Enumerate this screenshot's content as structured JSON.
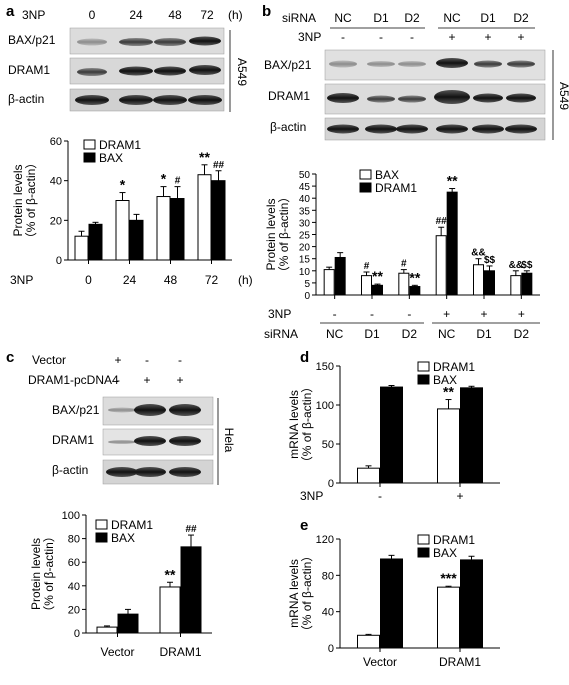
{
  "panels": {
    "a": {
      "letter": "a",
      "treatment_label": "3NP",
      "times": [
        "0",
        "24",
        "48",
        "72"
      ],
      "time_unit": "(h)",
      "blot_labels": [
        "BAX/p21",
        "DRAM1",
        "β-actin"
      ],
      "cell_line": "A549"
    },
    "b": {
      "letter": "b",
      "sirna_label": "siRNA",
      "sirna": [
        "NC",
        "D1",
        "D2",
        "NC",
        "D1",
        "D2"
      ],
      "np_label": "3NP",
      "np": [
        "-",
        "-",
        "-",
        "+",
        "+",
        "+"
      ],
      "blot_labels": [
        "BAX/p21",
        "DRAM1",
        "β-actin"
      ],
      "cell_line": "A549"
    },
    "c": {
      "letter": "c",
      "row_labels": [
        "Vector",
        "DRAM1-pcDNA4"
      ],
      "vector_marks": [
        "+",
        "-",
        "-"
      ],
      "dram_marks": [
        "-",
        "+",
        "+"
      ],
      "blot_labels": [
        "BAX/p21",
        "DRAM1",
        "β-actin"
      ],
      "cell_line": "Hela"
    },
    "d": {
      "letter": "d"
    },
    "e": {
      "letter": "e"
    }
  },
  "chart_data": [
    {
      "panel": "a",
      "type": "bar",
      "ylabel": "Protein levels\n（% of β-actin）",
      "ylim": [
        0,
        60
      ],
      "yticks": [
        0,
        20,
        40,
        60
      ],
      "xlabel_prefix": "3NP",
      "x_unit": "(h)",
      "categories": [
        "0",
        "24",
        "48",
        "72"
      ],
      "series": [
        {
          "name": "DRAM1",
          "fill": "white",
          "values": [
            12,
            30,
            32,
            43
          ],
          "errors": [
            2.5,
            4,
            5,
            5
          ]
        },
        {
          "name": "BAX",
          "fill": "black",
          "values": [
            18,
            20,
            31,
            40
          ],
          "errors": [
            1,
            3,
            6,
            5
          ]
        }
      ],
      "annotations": [
        {
          "category": 1,
          "series": 0,
          "text": "*"
        },
        {
          "category": 2,
          "series": 0,
          "text": "*"
        },
        {
          "category": 2,
          "series": 1,
          "text": "#"
        },
        {
          "category": 3,
          "series": 0,
          "text": "**"
        },
        {
          "category": 3,
          "series": 1,
          "text": "##"
        }
      ]
    },
    {
      "panel": "b",
      "type": "bar",
      "ylabel": "Protein levels\n（% of β-actin）",
      "ylim": [
        0,
        50
      ],
      "yticks": [
        0,
        5,
        10,
        15,
        20,
        25,
        30,
        35,
        40,
        45,
        50
      ],
      "row1_label": "3NP",
      "row1": [
        "-",
        "-",
        "-",
        "+",
        "+",
        "+"
      ],
      "row2_label": "siRNA",
      "categories": [
        "NC",
        "D1",
        "D2",
        "NC",
        "D1",
        "D2"
      ],
      "series": [
        {
          "name": "BAX",
          "fill": "white",
          "values": [
            10.5,
            8,
            9,
            24.5,
            12.5,
            8
          ],
          "errors": [
            1,
            1.5,
            1.5,
            3.5,
            2.5,
            2
          ]
        },
        {
          "name": "DRAM1",
          "fill": "black",
          "values": [
            15.5,
            4,
            3.5,
            42.5,
            10,
            9
          ],
          "errors": [
            2,
            0.5,
            0.5,
            1.5,
            2,
            1
          ]
        }
      ],
      "annotations": [
        {
          "category": 1,
          "series": 0,
          "text": "#"
        },
        {
          "category": 1,
          "series": 1,
          "text": "**"
        },
        {
          "category": 2,
          "series": 0,
          "text": "#"
        },
        {
          "category": 2,
          "series": 1,
          "text": "**"
        },
        {
          "category": 3,
          "series": 0,
          "text": "##"
        },
        {
          "category": 3,
          "series": 1,
          "text": "**"
        },
        {
          "category": 4,
          "series": 0,
          "text": "&&"
        },
        {
          "category": 4,
          "series": 1,
          "text": "$$"
        },
        {
          "category": 5,
          "series": 0,
          "text": "&&"
        },
        {
          "category": 5,
          "series": 1,
          "text": "$$"
        }
      ]
    },
    {
      "panel": "c",
      "type": "bar",
      "ylabel": "Protein levels\n（% of β-actin）",
      "ylim": [
        0,
        100
      ],
      "yticks": [
        0,
        20,
        40,
        60,
        80,
        100
      ],
      "categories": [
        "Vector",
        "DRAM1"
      ],
      "series": [
        {
          "name": "DRAM1",
          "fill": "white",
          "values": [
            5,
            39
          ],
          "errors": [
            1,
            4
          ]
        },
        {
          "name": "BAX",
          "fill": "black",
          "values": [
            16,
            73
          ],
          "errors": [
            4,
            10
          ]
        }
      ],
      "annotations": [
        {
          "category": 1,
          "series": 0,
          "text": "**"
        },
        {
          "category": 1,
          "series": 1,
          "text": "##"
        }
      ]
    },
    {
      "panel": "d",
      "type": "bar",
      "ylabel": "mRNA levels\n（% of β-actin）",
      "ylim": [
        0,
        150
      ],
      "yticks": [
        0,
        50,
        100,
        150
      ],
      "row1_label": "3NP",
      "categories": [
        "-",
        "+"
      ],
      "series": [
        {
          "name": "DRAM1",
          "fill": "white",
          "values": [
            19,
            95
          ],
          "errors": [
            3,
            12
          ]
        },
        {
          "name": "BAX",
          "fill": "black",
          "values": [
            123,
            122
          ],
          "errors": [
            2,
            2
          ]
        }
      ],
      "annotations": [
        {
          "category": 1,
          "series": 0,
          "text": "**"
        }
      ]
    },
    {
      "panel": "e",
      "type": "bar",
      "ylabel": "mRNA levels\n（% of β-actin）",
      "ylim": [
        0,
        120
      ],
      "yticks": [
        0,
        40,
        80,
        120
      ],
      "categories": [
        "Vector",
        "DRAM1"
      ],
      "series": [
        {
          "name": "DRAM1",
          "fill": "white",
          "values": [
            14,
            67
          ],
          "errors": [
            1,
            1
          ]
        },
        {
          "name": "BAX",
          "fill": "black",
          "values": [
            98,
            97
          ],
          "errors": [
            4,
            4
          ]
        }
      ],
      "annotations": [
        {
          "category": 1,
          "series": 0,
          "text": "***"
        }
      ]
    }
  ]
}
